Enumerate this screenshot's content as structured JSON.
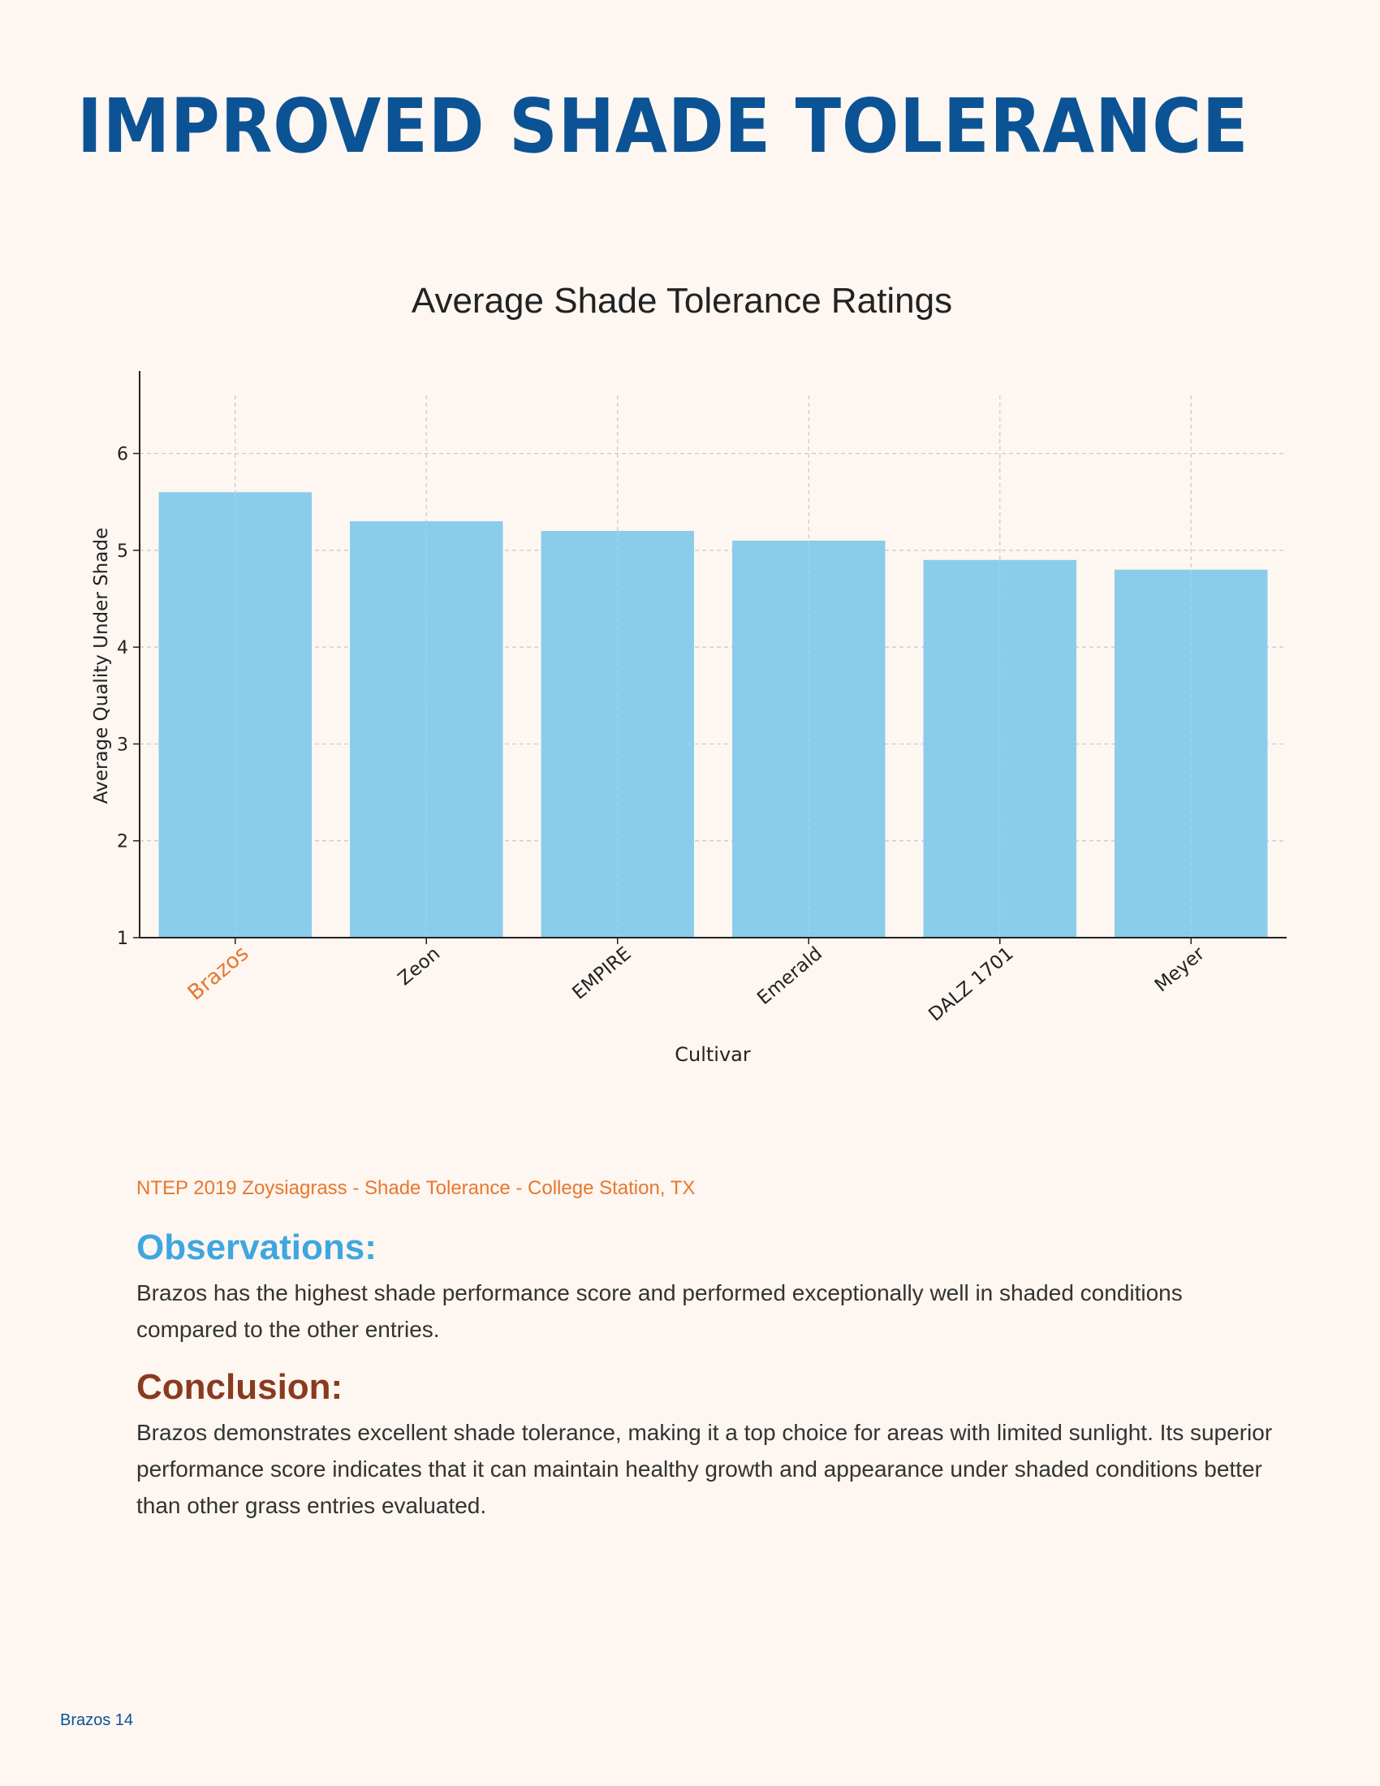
{
  "page": {
    "title": "IMPROVED SHADE TOLERANCE",
    "source": "NTEP 2019 Zoysiagrass - Shade Tolerance - College Station, TX",
    "observations_heading": "Observations:",
    "observations_text": "Brazos has the highest shade performance score and performed exceptionally well in shaded conditions compared to the other entries.",
    "conclusion_heading": "Conclusion:",
    "conclusion_text": "Brazos demonstrates excellent shade tolerance, making it a top choice for areas with limited sunlight. Its superior performance score indicates that it can maintain healthy growth and appearance under shaded conditions better than other grass entries evaluated.",
    "footer": "Brazos 14"
  },
  "colors": {
    "title": "#0b5394",
    "bar": "#89cdea",
    "highlight_label": "#e8772e",
    "observations": "#3ea6e0",
    "conclusion": "#8a3a1f"
  },
  "chart_data": {
    "type": "bar",
    "title": "Average Shade Tolerance Ratings",
    "xlabel": "Cultivar",
    "ylabel": "Average Quality Under Shade",
    "categories": [
      "Brazos",
      "Zeon",
      "EMPIRE",
      "Emerald",
      "DALZ 1701",
      "Meyer"
    ],
    "values": [
      5.6,
      5.3,
      5.2,
      5.1,
      4.9,
      4.8
    ],
    "highlight_category": "Brazos",
    "ylim": [
      1,
      6.6
    ],
    "yticks": [
      1,
      2,
      3,
      4,
      5,
      6
    ],
    "grid": true,
    "legend": "none"
  }
}
